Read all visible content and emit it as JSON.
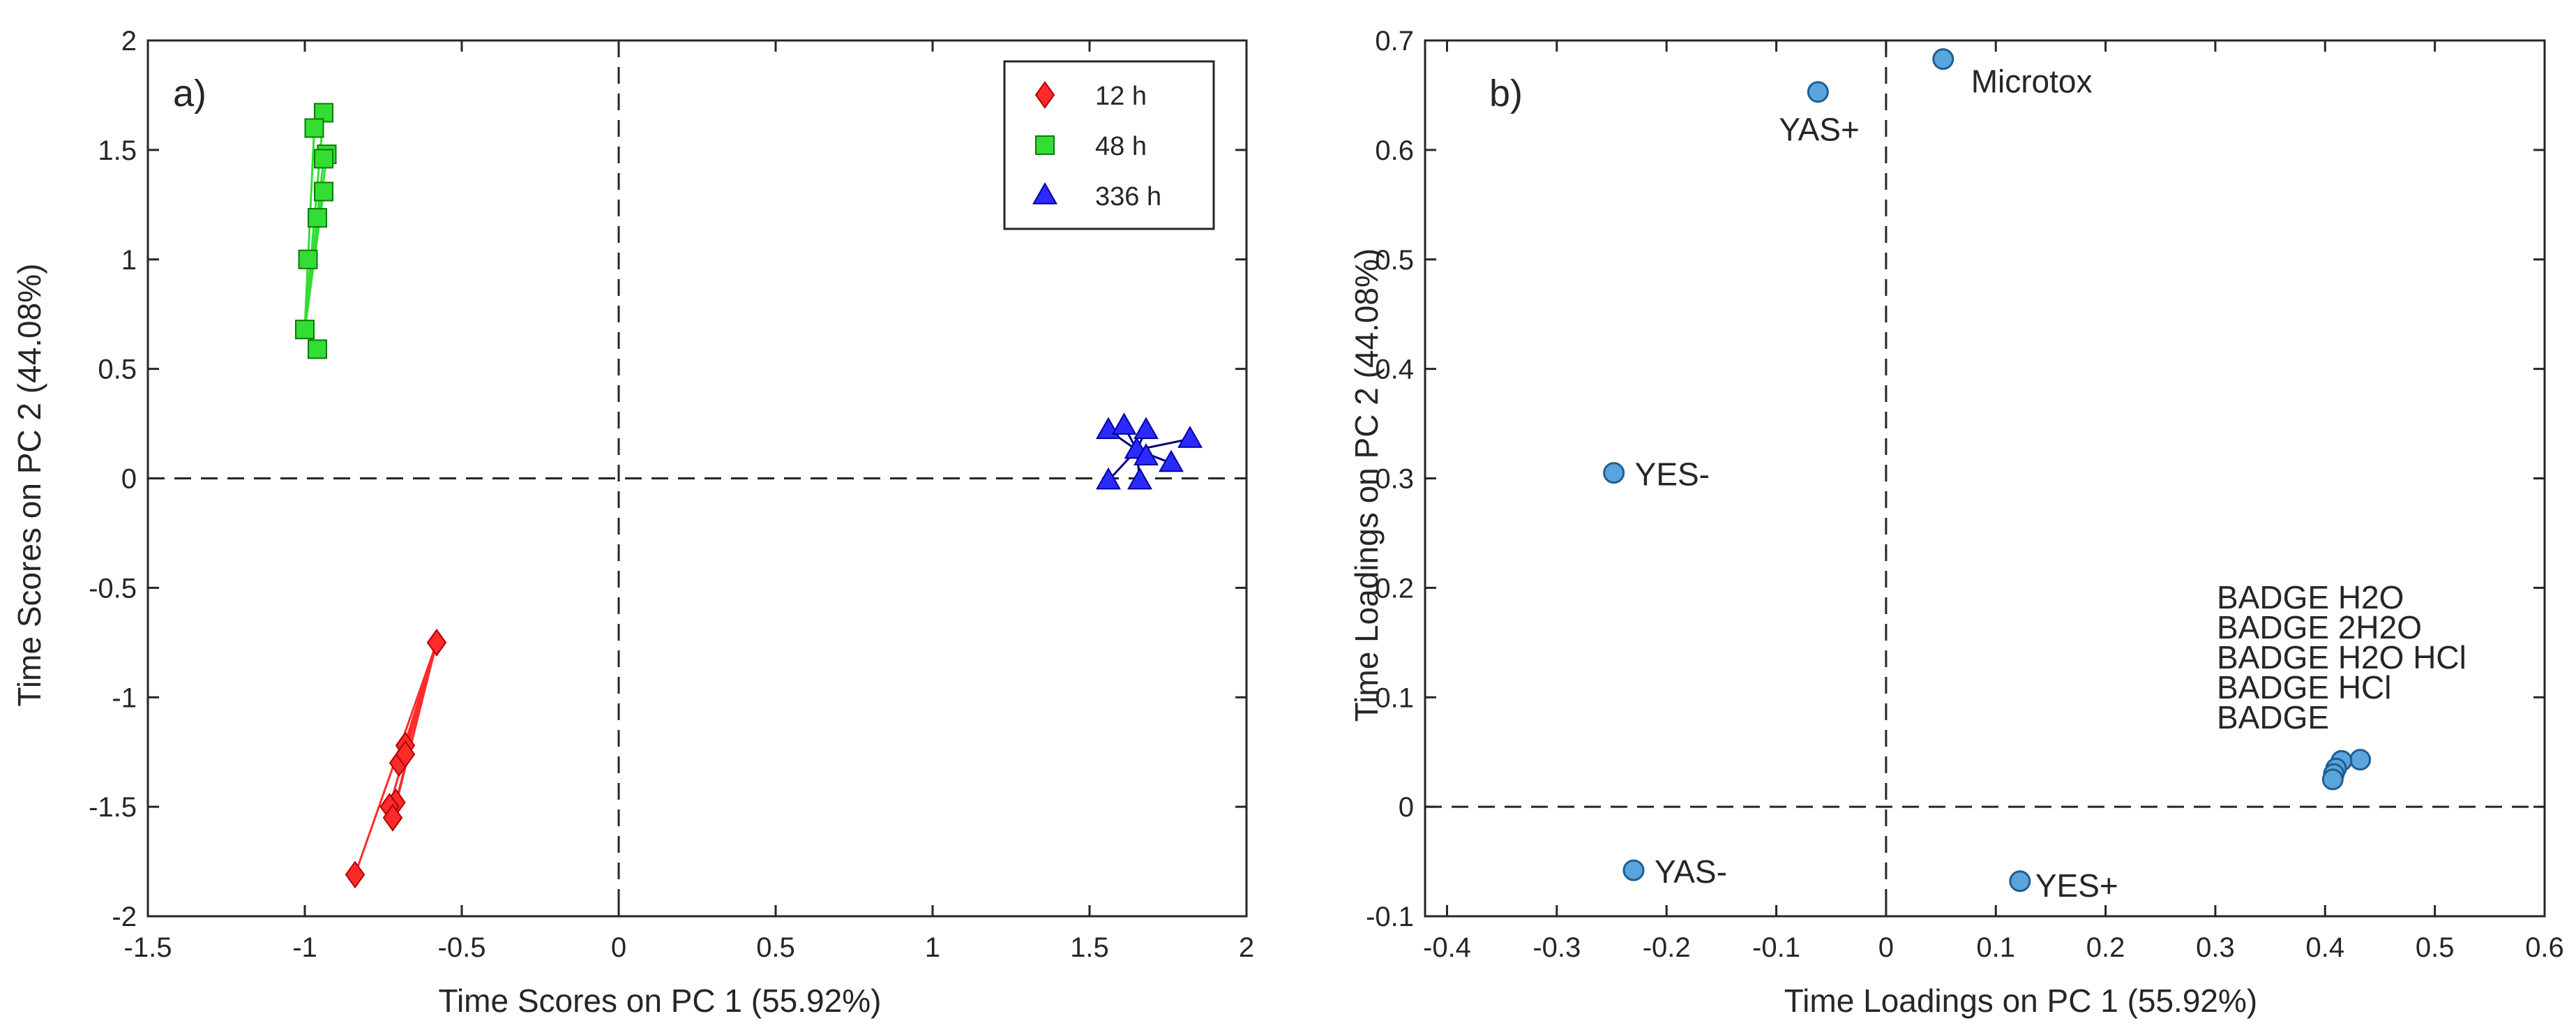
{
  "chart_data": [
    {
      "type": "scatter",
      "panel_label": "a)",
      "title": "",
      "xlabel": "Time Scores on PC 1 (55.92%)",
      "ylabel": "Time Scores on PC 2 (44.08%)",
      "xlim": [
        -1.5,
        2
      ],
      "ylim": [
        -2,
        2
      ],
      "xticks": [
        -1.5,
        -1,
        -0.5,
        0,
        0.5,
        1,
        1.5,
        2
      ],
      "yticks": [
        -2,
        -1.5,
        -1,
        -0.5,
        0,
        0.5,
        1,
        1.5,
        2
      ],
      "xtick_labels": [
        "-1.5",
        "-1",
        "-0.5",
        "0",
        "0.5",
        "1",
        "1.5",
        "2"
      ],
      "ytick_labels": [
        "-2",
        "-1.5",
        "-1",
        "-0.5",
        "0",
        "0.5",
        "1",
        "1.5",
        "2"
      ],
      "reference_lines": {
        "x": 0,
        "y": 0,
        "style": "dashed"
      },
      "legend_position": "top-right",
      "series": [
        {
          "name": "12 h",
          "marker": "diamond",
          "color": "#ff2a2a",
          "stroke": "#b00000",
          "points": [
            {
              "x": -0.58,
              "y": -0.75
            },
            {
              "x": -0.68,
              "y": -1.22
            },
            {
              "x": -0.7,
              "y": -1.3
            },
            {
              "x": -0.68,
              "y": -1.26
            },
            {
              "x": -0.71,
              "y": -1.48
            },
            {
              "x": -0.73,
              "y": -1.5
            },
            {
              "x": -0.72,
              "y": -1.55
            },
            {
              "x": -0.84,
              "y": -1.81
            }
          ],
          "edges": [
            [
              0,
              1
            ],
            [
              0,
              2
            ],
            [
              0,
              3
            ],
            [
              0,
              4
            ],
            [
              0,
              5
            ],
            [
              0,
              6
            ],
            [
              0,
              7
            ]
          ]
        },
        {
          "name": "48 h",
          "marker": "square",
          "color": "#33dd33",
          "stroke": "#0a7a0a",
          "points": [
            {
              "x": -0.94,
              "y": 1.67
            },
            {
              "x": -0.97,
              "y": 1.6
            },
            {
              "x": -0.93,
              "y": 1.48
            },
            {
              "x": -0.94,
              "y": 1.46
            },
            {
              "x": -0.94,
              "y": 1.31
            },
            {
              "x": -0.96,
              "y": 1.19
            },
            {
              "x": -0.99,
              "y": 1.0
            },
            {
              "x": -1.0,
              "y": 0.68
            },
            {
              "x": -0.96,
              "y": 0.59
            }
          ],
          "edges": [
            [
              7,
              6
            ],
            [
              7,
              5
            ],
            [
              7,
              4
            ],
            [
              7,
              3
            ],
            [
              7,
              2
            ],
            [
              7,
              1
            ],
            [
              7,
              0
            ],
            [
              7,
              8
            ]
          ]
        },
        {
          "name": "336 h",
          "marker": "triangle",
          "color": "#2b2bff",
          "stroke": "#0000a0",
          "points": [
            {
              "x": 1.65,
              "y": 0.13
            },
            {
              "x": 1.56,
              "y": 0.22
            },
            {
              "x": 1.61,
              "y": 0.24
            },
            {
              "x": 1.68,
              "y": 0.22
            },
            {
              "x": 1.82,
              "y": 0.18
            },
            {
              "x": 1.76,
              "y": 0.07
            },
            {
              "x": 1.68,
              "y": 0.1
            },
            {
              "x": 1.56,
              "y": -0.01
            },
            {
              "x": 1.66,
              "y": -0.01
            }
          ],
          "edges": [
            [
              0,
              1
            ],
            [
              0,
              2
            ],
            [
              0,
              3
            ],
            [
              0,
              4
            ],
            [
              0,
              5
            ],
            [
              0,
              6
            ],
            [
              0,
              7
            ],
            [
              0,
              8
            ]
          ]
        }
      ]
    },
    {
      "type": "scatter",
      "panel_label": "b)",
      "title": "",
      "xlabel": "Time Loadings on PC 1 (55.92%)",
      "ylabel": "Time Loadings on PC 2 (44.08%)",
      "xlim": [
        -0.42,
        0.6
      ],
      "ylim": [
        -0.1,
        0.7
      ],
      "xticks": [
        -0.4,
        -0.3,
        -0.2,
        -0.1,
        0,
        0.1,
        0.2,
        0.3,
        0.4,
        0.5,
        0.6
      ],
      "yticks": [
        -0.1,
        0,
        0.1,
        0.2,
        0.3,
        0.4,
        0.5,
        0.6,
        0.7
      ],
      "xtick_labels": [
        "-0.4",
        "-0.3",
        "-0.2",
        "-0.1",
        "0",
        "0.1",
        "0.2",
        "0.3",
        "0.4",
        "0.5",
        "0.6"
      ],
      "ytick_labels": [
        "-0.1",
        "0",
        "0.1",
        "0.2",
        "0.3",
        "0.4",
        "0.5",
        "0.6",
        "0.7"
      ],
      "reference_lines": {
        "x": 0,
        "y": 0,
        "style": "dashed"
      },
      "marker": "circle",
      "color": "#5aa5dd",
      "stroke": "#1f5f90",
      "points": [
        {
          "label": "Microtox",
          "x": 0.052,
          "y": 0.683
        },
        {
          "label": "YAS+",
          "x": -0.062,
          "y": 0.653
        },
        {
          "label": "YES-",
          "x": -0.248,
          "y": 0.305
        },
        {
          "label": "YAS-",
          "x": -0.23,
          "y": -0.058
        },
        {
          "label": "YES+",
          "x": 0.122,
          "y": -0.068
        },
        {
          "label": "BADGE H2O",
          "x": 0.432,
          "y": 0.043
        },
        {
          "label": "BADGE 2H2O",
          "x": 0.415,
          "y": 0.042
        },
        {
          "label": "BADGE H2O HCl",
          "x": 0.41,
          "y": 0.035
        },
        {
          "label": "BADGE HCl",
          "x": 0.408,
          "y": 0.03
        },
        {
          "label": "BADGE",
          "x": 0.407,
          "y": 0.025
        }
      ]
    }
  ]
}
